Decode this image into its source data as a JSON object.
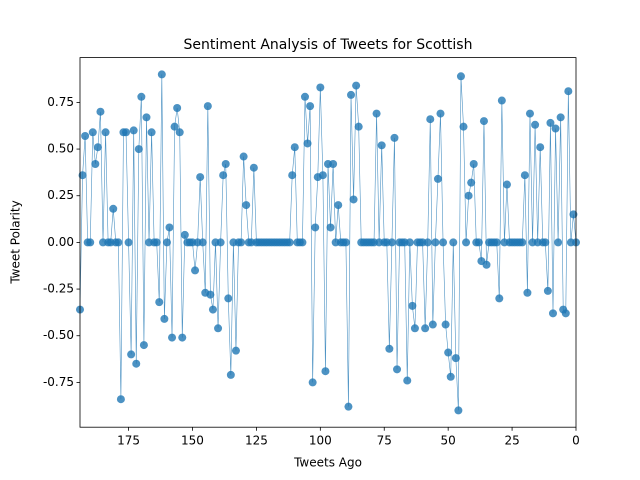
{
  "chart_data": {
    "type": "line",
    "title": "Sentiment Analysis of Tweets for Scottish",
    "xlabel": "Tweets Ago",
    "ylabel": "Tweet Polarity",
    "color": "#1f77b4",
    "x": [
      194,
      193,
      192,
      191,
      190,
      189,
      188,
      187,
      186,
      185,
      184,
      183,
      182,
      181,
      180,
      179,
      178,
      177,
      176,
      175,
      174,
      173,
      172,
      171,
      170,
      169,
      168,
      167,
      166,
      165,
      164,
      163,
      162,
      161,
      160,
      159,
      158,
      157,
      156,
      155,
      154,
      153,
      152,
      151,
      150,
      149,
      148,
      147,
      146,
      145,
      144,
      143,
      142,
      141,
      140,
      139,
      138,
      137,
      136,
      135,
      134,
      133,
      132,
      131,
      130,
      129,
      128,
      127,
      126,
      125,
      124,
      123,
      122,
      121,
      120,
      119,
      118,
      117,
      116,
      115,
      114,
      113,
      112,
      111,
      110,
      109,
      108,
      107,
      106,
      105,
      104,
      103,
      102,
      101,
      100,
      99,
      98,
      97,
      96,
      95,
      94,
      93,
      92,
      91,
      90,
      89,
      88,
      87,
      86,
      85,
      84,
      83,
      82,
      81,
      80,
      79,
      78,
      77,
      76,
      75,
      74,
      73,
      72,
      71,
      70,
      69,
      68,
      67,
      66,
      65,
      64,
      63,
      62,
      61,
      60,
      59,
      58,
      57,
      56,
      55,
      54,
      53,
      52,
      51,
      50,
      49,
      48,
      47,
      46,
      45,
      44,
      43,
      42,
      41,
      40,
      39,
      38,
      37,
      36,
      35,
      34,
      33,
      32,
      31,
      30,
      29,
      28,
      27,
      26,
      25,
      24,
      23,
      22,
      21,
      20,
      19,
      18,
      17,
      16,
      15,
      14,
      13,
      12,
      11,
      10,
      9,
      8,
      7,
      6,
      5,
      4,
      3,
      2,
      1,
      0
    ],
    "values": [
      -0.36,
      0.36,
      0.57,
      0,
      0,
      0.59,
      0.42,
      0.51,
      0.7,
      0,
      0.59,
      0,
      0,
      0.18,
      0,
      0,
      -0.84,
      0.59,
      0.59,
      0,
      -0.6,
      0.6,
      -0.65,
      0.5,
      0.78,
      -0.55,
      0.67,
      0,
      0.59,
      0,
      0,
      -0.32,
      0.9,
      -0.41,
      0,
      0.08,
      -0.51,
      0.62,
      0.72,
      0.59,
      -0.51,
      0.04,
      0,
      0,
      0,
      -0.15,
      0,
      0.35,
      0,
      -0.27,
      0.73,
      -0.28,
      -0.36,
      0,
      -0.46,
      0,
      0.36,
      0.42,
      -0.3,
      -0.71,
      0,
      -0.58,
      0,
      0,
      0.46,
      0.2,
      0,
      0,
      0.4,
      0,
      0,
      0,
      0,
      0,
      0,
      0,
      0,
      0,
      0,
      0,
      0,
      0,
      0,
      0.36,
      0.51,
      0,
      0,
      0,
      0.78,
      0.53,
      0.73,
      -0.75,
      0.08,
      0.35,
      0.83,
      0.36,
      -0.69,
      0.42,
      0.08,
      0.42,
      0,
      0.2,
      0,
      0,
      0,
      -0.88,
      0.79,
      0.23,
      0.84,
      0.62,
      0,
      0,
      0,
      0,
      0,
      0,
      0.69,
      0,
      0.52,
      0,
      0,
      -0.57,
      0,
      0.56,
      -0.68,
      0,
      0,
      0,
      -0.74,
      0,
      -0.34,
      -0.46,
      0,
      0,
      0,
      -0.46,
      0,
      0.66,
      -0.44,
      0,
      0.34,
      0.69,
      0,
      -0.44,
      -0.59,
      -0.72,
      0,
      -0.62,
      -0.9,
      0.89,
      0.62,
      0,
      0.25,
      0.32,
      0.42,
      0,
      0,
      -0.1,
      0.65,
      -0.12,
      0,
      0,
      0,
      0,
      -0.3,
      0.76,
      0,
      0.31,
      0,
      0,
      0,
      0,
      0,
      0,
      0.36,
      -0.27,
      0.69,
      0,
      0.63,
      0,
      0.51,
      0,
      0,
      -0.26,
      0.64,
      -0.38,
      0.61,
      0,
      0.67,
      -0.36,
      -0.38,
      0.81,
      0,
      0.15,
      0
    ],
    "xlim": [
      194,
      0
    ],
    "xticks": [
      175,
      150,
      125,
      100,
      75,
      50,
      25,
      0
    ],
    "ylim": [
      -0.99,
      0.99
    ],
    "yticks": [
      -0.75,
      {
        "value": -0.5,
        "label": "-0.50"
      },
      -0.25,
      {
        "value": 0,
        "label": "0.00"
      },
      0.25,
      {
        "value": 0.5,
        "label": "0.50"
      },
      0.75
    ]
  }
}
